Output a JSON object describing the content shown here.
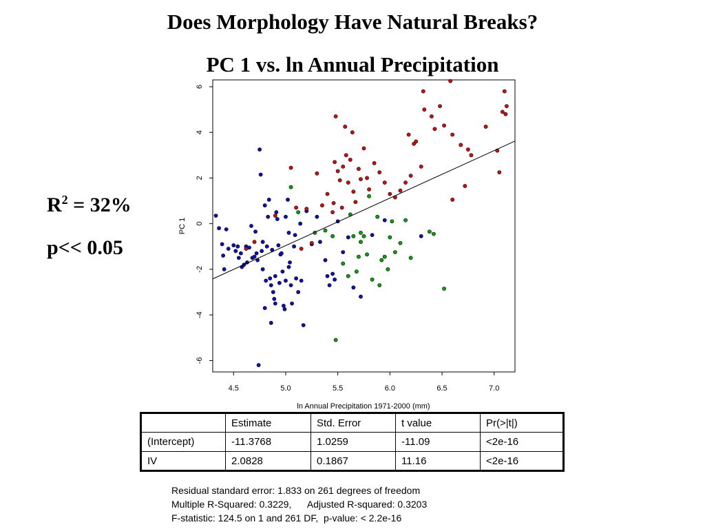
{
  "slide": {
    "title": "Does Morphology Have Natural Breaks?",
    "subtitle": "PC 1 vs. ln Annual Precipitation",
    "r2_label": "R",
    "r2_sup": "2",
    "r2_value": " = 32%",
    "p_label": "p<< 0.05"
  },
  "chart_data": {
    "type": "scatter",
    "title": "",
    "xlabel": "ln Annual Precipitation 1971-2000 (mm)",
    "ylabel": "PC 1",
    "xlim": [
      4.3,
      7.2
    ],
    "ylim": [
      -6.5,
      6.3
    ],
    "xticks": [
      4.5,
      5.0,
      5.5,
      6.0,
      6.5,
      7.0
    ],
    "xtick_labels": [
      "4.5",
      "5.0",
      "5.5",
      "6.0",
      "6.5",
      "7.0"
    ],
    "yticks": [
      -6,
      -4,
      -2,
      0,
      2,
      4,
      6
    ],
    "ytick_labels": [
      "-6",
      "-4",
      "-2",
      "0",
      "2",
      "4",
      "6"
    ],
    "grid": false,
    "fit_line": {
      "intercept": -11.3768,
      "slope": 2.0828
    },
    "colors": {
      "blue": "#1010b0",
      "red": "#cc1010",
      "green": "#10a010",
      "line": "#000000"
    },
    "series": [
      {
        "color": "blue",
        "points": [
          [
            4.33,
            0.35
          ],
          [
            4.36,
            -0.2
          ],
          [
            4.39,
            -0.9
          ],
          [
            4.4,
            -1.4
          ],
          [
            4.41,
            -2.0
          ],
          [
            4.43,
            -0.25
          ],
          [
            4.45,
            -1.1
          ],
          [
            4.5,
            -0.95
          ],
          [
            4.52,
            -1.2
          ],
          [
            4.54,
            -1.0
          ],
          [
            4.55,
            -1.5
          ],
          [
            4.57,
            -1.3
          ],
          [
            4.58,
            -1.9
          ],
          [
            4.6,
            -1.8
          ],
          [
            4.62,
            -1.0
          ],
          [
            4.63,
            -1.7
          ],
          [
            4.65,
            -1.05
          ],
          [
            4.67,
            -0.1
          ],
          [
            4.68,
            -1.5
          ],
          [
            4.7,
            -1.45
          ],
          [
            4.71,
            -0.35
          ],
          [
            4.72,
            -1.3
          ],
          [
            4.73,
            -1.6
          ],
          [
            4.74,
            -6.2
          ],
          [
            4.75,
            3.25
          ],
          [
            4.76,
            2.15
          ],
          [
            4.77,
            -1.2
          ],
          [
            4.78,
            -0.8
          ],
          [
            4.78,
            -2.0
          ],
          [
            4.8,
            0.8
          ],
          [
            4.8,
            -3.7
          ],
          [
            4.81,
            -2.5
          ],
          [
            4.82,
            -1.0
          ],
          [
            4.83,
            0.3
          ],
          [
            4.84,
            1.05
          ],
          [
            4.85,
            -2.4
          ],
          [
            4.86,
            -2.7
          ],
          [
            4.86,
            -4.35
          ],
          [
            4.87,
            -1.15
          ],
          [
            4.88,
            -3.0
          ],
          [
            4.89,
            -3.3
          ],
          [
            4.9,
            -3.5
          ],
          [
            4.9,
            -2.3
          ],
          [
            4.91,
            0.5
          ],
          [
            4.92,
            0.2
          ],
          [
            4.93,
            -0.95
          ],
          [
            4.94,
            -2.6
          ],
          [
            4.95,
            -1.35
          ],
          [
            4.96,
            -1.3
          ],
          [
            4.97,
            -2.1
          ],
          [
            4.98,
            -3.6
          ],
          [
            4.99,
            -3.75
          ],
          [
            5.0,
            -2.5
          ],
          [
            5.0,
            0.3
          ],
          [
            5.02,
            1.05
          ],
          [
            5.03,
            -0.4
          ],
          [
            5.03,
            -1.9
          ],
          [
            5.04,
            -1.7
          ],
          [
            5.05,
            -2.7
          ],
          [
            5.06,
            -3.5
          ],
          [
            5.08,
            -1.0
          ],
          [
            5.09,
            -0.5
          ],
          [
            5.1,
            -2.4
          ],
          [
            5.12,
            -3.0
          ],
          [
            5.14,
            0.0
          ],
          [
            5.15,
            -2.5
          ],
          [
            5.17,
            -4.45
          ],
          [
            5.2,
            0.55
          ],
          [
            5.25,
            -0.9
          ],
          [
            5.3,
            0.3
          ],
          [
            5.33,
            -0.8
          ],
          [
            5.38,
            -1.6
          ],
          [
            5.4,
            -2.3
          ],
          [
            5.42,
            -2.7
          ],
          [
            5.45,
            -2.2
          ],
          [
            5.47,
            -2.45
          ],
          [
            5.5,
            0.1
          ],
          [
            5.55,
            -1.25
          ],
          [
            5.6,
            -0.6
          ],
          [
            5.65,
            -2.8
          ],
          [
            5.72,
            -3.2
          ],
          [
            5.83,
            -0.5
          ],
          [
            5.95,
            0.15
          ],
          [
            6.3,
            -0.55
          ]
        ]
      },
      {
        "color": "red",
        "points": [
          [
            4.62,
            -1.1
          ],
          [
            4.7,
            -0.8
          ],
          [
            4.9,
            0.35
          ],
          [
            5.05,
            2.45
          ],
          [
            5.1,
            0.7
          ],
          [
            5.15,
            -1.1
          ],
          [
            5.2,
            0.65
          ],
          [
            5.25,
            -0.85
          ],
          [
            5.3,
            2.2
          ],
          [
            5.35,
            0.8
          ],
          [
            5.4,
            1.3
          ],
          [
            5.45,
            0.5
          ],
          [
            5.46,
            0.9
          ],
          [
            5.47,
            2.7
          ],
          [
            5.48,
            4.7
          ],
          [
            5.5,
            2.3
          ],
          [
            5.52,
            1.9
          ],
          [
            5.54,
            0.7
          ],
          [
            5.55,
            2.5
          ],
          [
            5.57,
            4.25
          ],
          [
            5.58,
            3.0
          ],
          [
            5.6,
            1.8
          ],
          [
            5.62,
            2.8
          ],
          [
            5.64,
            4.0
          ],
          [
            5.65,
            1.4
          ],
          [
            5.67,
            0.95
          ],
          [
            5.7,
            2.4
          ],
          [
            5.72,
            1.95
          ],
          [
            5.75,
            3.3
          ],
          [
            5.78,
            2.0
          ],
          [
            5.8,
            1.5
          ],
          [
            5.85,
            2.65
          ],
          [
            5.9,
            2.25
          ],
          [
            5.95,
            1.8
          ],
          [
            6.0,
            1.3
          ],
          [
            6.05,
            1.15
          ],
          [
            6.1,
            1.45
          ],
          [
            6.15,
            1.8
          ],
          [
            6.18,
            3.9
          ],
          [
            6.2,
            2.1
          ],
          [
            6.23,
            3.5
          ],
          [
            6.25,
            3.6
          ],
          [
            6.3,
            2.5
          ],
          [
            6.32,
            5.8
          ],
          [
            6.33,
            5.0
          ],
          [
            6.4,
            4.7
          ],
          [
            6.43,
            4.15
          ],
          [
            6.48,
            5.15
          ],
          [
            6.52,
            4.3
          ],
          [
            6.58,
            6.25
          ],
          [
            6.6,
            3.9
          ],
          [
            6.6,
            1.05
          ],
          [
            6.68,
            3.45
          ],
          [
            6.72,
            1.65
          ],
          [
            6.75,
            3.25
          ],
          [
            6.78,
            3.0
          ],
          [
            6.92,
            4.25
          ],
          [
            7.03,
            3.2
          ],
          [
            7.05,
            2.25
          ],
          [
            7.08,
            4.9
          ],
          [
            7.1,
            5.8
          ],
          [
            7.11,
            4.8
          ],
          [
            7.12,
            5.15
          ]
        ]
      },
      {
        "color": "green",
        "points": [
          [
            5.05,
            1.6
          ],
          [
            5.12,
            0.5
          ],
          [
            5.28,
            -0.4
          ],
          [
            5.38,
            -0.3
          ],
          [
            5.45,
            -0.55
          ],
          [
            5.48,
            -5.1
          ],
          [
            5.55,
            -1.75
          ],
          [
            5.6,
            -2.3
          ],
          [
            5.62,
            0.4
          ],
          [
            5.65,
            -0.55
          ],
          [
            5.68,
            -2.1
          ],
          [
            5.7,
            -1.45
          ],
          [
            5.72,
            -0.8
          ],
          [
            5.75,
            -0.55
          ],
          [
            5.78,
            -1.35
          ],
          [
            5.8,
            1.2
          ],
          [
            5.83,
            -2.45
          ],
          [
            5.88,
            0.3
          ],
          [
            5.92,
            -1.6
          ],
          [
            5.95,
            -1.45
          ],
          [
            5.98,
            -2.0
          ],
          [
            6.02,
            0.1
          ],
          [
            6.05,
            -1.25
          ],
          [
            6.1,
            -0.85
          ],
          [
            6.15,
            0.15
          ],
          [
            6.2,
            -1.5
          ],
          [
            6.38,
            -0.35
          ],
          [
            6.42,
            -0.45
          ],
          [
            6.52,
            -2.85
          ],
          [
            5.72,
            -0.4
          ],
          [
            5.9,
            -2.7
          ],
          [
            6.0,
            -0.6
          ]
        ]
      }
    ]
  },
  "table": {
    "headers": [
      "",
      "Estimate",
      "Std. Error",
      "t value",
      "Pr(>|t|)"
    ],
    "rows": [
      [
        "(Intercept)",
        "-11.3768",
        "1.0259",
        "-11.09",
        "<2e-16"
      ],
      [
        "IV",
        "2.0828",
        "0.1867",
        "11.16",
        "<2e-16"
      ]
    ]
  },
  "fit_summary": {
    "line1": "Residual standard error: 1.833 on 261 degrees of freedom",
    "line2": "Multiple R-Squared: 0.3229,      Adjusted R-squared: 0.3203",
    "line3": "F-statistic: 124.5 on 1 and 261 DF,  p-value: < 2.2e-16"
  }
}
